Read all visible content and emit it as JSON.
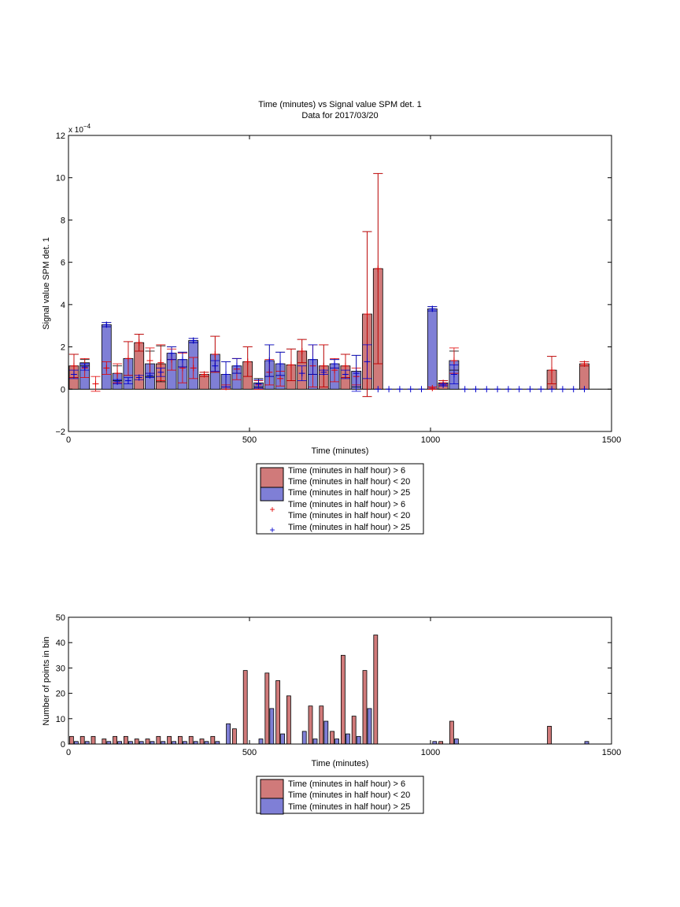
{
  "figure": {
    "title": "Time (minutes) vs Signal value SPM det. 1",
    "subtitle": "Data for 2017/03/20"
  },
  "legend_labels": {
    "gt6": "Time (minutes in half hour) > 6",
    "lt20": "Time (minutes in half hour) < 20",
    "gt25": "Time (minutes in half hour) > 25"
  },
  "colors": {
    "red_bar": "#d07a7a",
    "blue_bar": "#7f7fd6",
    "red_mark": "#e00000",
    "blue_mark": "#0000cc",
    "edge": "#000000"
  },
  "chart_data": [
    {
      "type": "bar",
      "xlabel": "Time (minutes)",
      "ylabel": "Signal value SPM det. 1",
      "exponent_label": "x 10",
      "exponent_power": "−4",
      "xlim": [
        0,
        1500
      ],
      "ylim": [
        -2,
        12
      ],
      "scale": 0.0001,
      "xticks": [
        0,
        500,
        1000,
        1500
      ],
      "yticks": [
        -2,
        0,
        2,
        4,
        6,
        8,
        10,
        12
      ],
      "legend_position": "below",
      "series": [
        {
          "name": "Time (minutes in half hour) > 6 / Time (minutes in half hour) < 20",
          "kind": "bar",
          "color": "#d07a7a",
          "x": [
            15,
            195,
            255,
            375,
            495,
            615,
            645,
            705,
            765,
            825,
            855,
            1035,
            1335,
            1425
          ],
          "y": [
            1.1,
            2.2,
            1.2,
            0.7,
            1.3,
            1.15,
            1.8,
            1.1,
            1.1,
            3.55,
            5.7,
            0.3,
            0.9,
            1.2
          ],
          "err": [
            0.55,
            0.4,
            0.85,
            0.1,
            0.7,
            0.75,
            0.55,
            1.0,
            0.55,
            3.9,
            4.5,
            0.1,
            0.65,
            0.1
          ]
        },
        {
          "name": "Time (minutes in half hour) > 25",
          "kind": "bar",
          "color": "#7f7fd6",
          "x": [
            45,
            105,
            135,
            165,
            225,
            285,
            315,
            345,
            405,
            435,
            465,
            525,
            555,
            585,
            675,
            735,
            795,
            1005,
            1065
          ],
          "y": [
            1.25,
            3.05,
            0.75,
            1.45,
            1.2,
            1.7,
            1.4,
            2.3,
            1.65,
            0.7,
            1.1,
            0.3,
            1.35,
            1.2,
            1.4,
            1.2,
            0.85,
            3.8,
            1.35
          ],
          "err": [
            0.15,
            0.1,
            0.35,
            0.8,
            0.6,
            0.3,
            0.35,
            0.1,
            0.85,
            0.6,
            0.35,
            0.2,
            0.75,
            0.55,
            0.7,
            0.2,
            0.75,
            0.1,
            0.45
          ]
        },
        {
          "name": "Time (minutes in half hour) > 6 / Time (minutes in half hour) < 20",
          "kind": "marker",
          "color": "#e00000",
          "x": [
            15,
            45,
            75,
            105,
            135,
            165,
            195,
            225,
            255,
            285,
            315,
            345,
            375,
            405,
            435,
            465,
            495,
            525,
            555,
            585,
            615,
            645,
            675,
            705,
            735,
            765,
            795,
            825,
            855,
            1005,
            1035,
            1065,
            1335,
            1425
          ],
          "y": [
            1.1,
            1.0,
            0.25,
            1.0,
            0.75,
            1.45,
            2.2,
            1.35,
            1.25,
            1.4,
            1.0,
            1.0,
            0.7,
            1.65,
            0.1,
            0.95,
            1.3,
            0.2,
            0.8,
            0.5,
            1.15,
            1.8,
            1.1,
            1.1,
            0.9,
            1.1,
            0.6,
            3.55,
            5.7,
            0.05,
            0.3,
            1.35,
            0.9,
            1.2
          ],
          "err": [
            0.55,
            0.45,
            0.35,
            0.3,
            0.45,
            0.8,
            0.4,
            0.6,
            0.85,
            0.5,
            0.7,
            0.5,
            0.1,
            0.85,
            0.1,
            0.5,
            0.7,
            0.2,
            0.6,
            0.35,
            0.75,
            0.55,
            1.0,
            1.0,
            0.55,
            0.55,
            0.4,
            3.9,
            4.5,
            0.05,
            0.1,
            0.6,
            0.65,
            0.1
          ]
        },
        {
          "name": "Time (minutes in half hour) > 25",
          "kind": "marker",
          "color": "#0000cc",
          "x": [
            15,
            45,
            105,
            135,
            165,
            195,
            225,
            255,
            285,
            315,
            345,
            405,
            435,
            465,
            525,
            555,
            585,
            645,
            675,
            705,
            735,
            765,
            795,
            825,
            855,
            885,
            915,
            945,
            975,
            1005,
            1035,
            1065,
            1095,
            1125,
            1155,
            1185,
            1215,
            1245,
            1275,
            1305,
            1335,
            1365,
            1395,
            1425
          ],
          "y": [
            0.7,
            1.05,
            3.05,
            0.35,
            0.4,
            0.55,
            0.65,
            0.8,
            1.7,
            1.4,
            2.3,
            1.1,
            0.7,
            1.1,
            0.25,
            1.35,
            1.2,
            0.75,
            1.4,
            0.8,
            1.2,
            0.7,
            0.75,
            1.3,
            0.0,
            0.0,
            0.0,
            0.0,
            0.0,
            3.8,
            0.2,
            0.7,
            0.0,
            0.0,
            0.0,
            0.0,
            0.0,
            0.0,
            0.0,
            0.0,
            0.0,
            0.0,
            0.0,
            0.0
          ],
          "err": [
            0.2,
            0.15,
            0.1,
            0.1,
            0.15,
            0.1,
            0.1,
            0.2,
            0.3,
            0.35,
            0.1,
            0.25,
            0.6,
            0.35,
            0.2,
            0.75,
            0.55,
            0.35,
            0.7,
            0.1,
            0.2,
            0.2,
            0.85,
            0.8,
            0.0,
            0.0,
            0.0,
            0.0,
            0.0,
            0.1,
            0.05,
            0.45,
            0.0,
            0.0,
            0.0,
            0.0,
            0.0,
            0.0,
            0.0,
            0.0,
            0.0,
            0.0,
            0.0,
            0.0
          ]
        }
      ]
    },
    {
      "type": "bar",
      "xlabel": "Time (minutes)",
      "ylabel": "Number of points in bin",
      "xlim": [
        0,
        1500
      ],
      "ylim": [
        0,
        50
      ],
      "xticks": [
        0,
        500,
        1000,
        1500
      ],
      "yticks": [
        0,
        10,
        20,
        30,
        40,
        50
      ],
      "legend_position": "below",
      "series": [
        {
          "name": "Time (minutes in half hour) > 6 / Time (minutes in half hour) < 20",
          "color": "#d07a7a",
          "x": [
            15,
            45,
            75,
            105,
            135,
            165,
            195,
            225,
            255,
            285,
            315,
            345,
            375,
            405,
            465,
            495,
            555,
            585,
            615,
            675,
            705,
            735,
            765,
            795,
            825,
            855,
            1035,
            1065,
            1335
          ],
          "y": [
            3,
            3,
            3,
            2,
            3,
            3,
            2,
            2,
            3,
            3,
            3,
            3,
            2,
            3,
            6,
            29,
            28,
            25,
            19,
            15,
            15,
            5,
            35,
            11,
            29,
            43,
            1,
            9,
            7
          ]
        },
        {
          "name": "Time (minutes in half hour) > 25",
          "color": "#7f7fd6",
          "x": [
            15,
            45,
            105,
            135,
            165,
            195,
            225,
            255,
            285,
            315,
            345,
            375,
            405,
            435,
            525,
            555,
            585,
            645,
            675,
            705,
            735,
            765,
            795,
            825,
            1005,
            1065,
            1425
          ],
          "y": [
            1,
            1,
            1,
            1,
            1,
            1,
            1,
            1,
            1,
            1,
            1,
            1,
            1,
            8,
            2,
            14,
            4,
            5,
            2,
            9,
            2,
            4,
            3,
            14,
            1,
            2,
            1
          ]
        }
      ]
    }
  ]
}
